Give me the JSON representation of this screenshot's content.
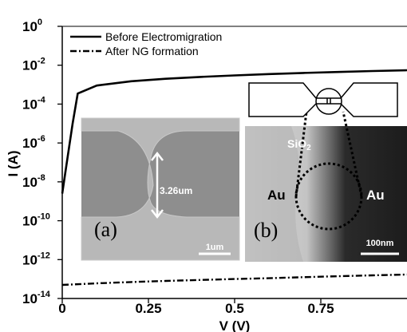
{
  "chart_data": {
    "type": "line",
    "xlabel": "V (V)",
    "ylabel": "I (A)",
    "xlim": [
      0,
      1.0
    ],
    "ylim_log10": [
      -14,
      0
    ],
    "y_scale": "log",
    "x_ticks": [
      "0",
      "0.25",
      "0.5",
      "0.75"
    ],
    "x_tick_values": [
      0,
      0.25,
      0.5,
      0.75
    ],
    "y_ticks": [
      {
        "base": "10",
        "exp": "0",
        "value": 0
      },
      {
        "base": "10",
        "exp": "-2",
        "value": -2
      },
      {
        "base": "10",
        "exp": "-4",
        "value": -4
      },
      {
        "base": "10",
        "exp": "-6",
        "value": -6
      },
      {
        "base": "10",
        "exp": "-8",
        "value": -8
      },
      {
        "base": "10",
        "exp": "-10",
        "value": -10
      },
      {
        "base": "10",
        "exp": "-12",
        "value": -12
      },
      {
        "base": "10",
        "exp": "-14",
        "value": -14
      }
    ],
    "series": [
      {
        "name": "Before Electromigration",
        "style": "solid",
        "x": [
          0,
          0.01,
          0.03,
          0.045,
          0.1,
          0.2,
          0.3,
          0.4,
          0.5,
          0.6,
          0.7,
          0.8,
          0.9,
          1.0
        ],
        "y": [
          2.5e-09,
          4e-08,
          1e-05,
          0.00035,
          0.0009,
          0.0015,
          0.002,
          0.0025,
          0.003,
          0.0035,
          0.004,
          0.0045,
          0.005,
          0.0055
        ]
      },
      {
        "name": "After NG formation",
        "style": "dash-dot",
        "x": [
          0,
          0.1,
          0.2,
          0.3,
          0.4,
          0.5,
          0.6,
          0.7,
          0.8,
          0.9,
          1.0
        ],
        "y": [
          5e-14,
          6e-14,
          7e-14,
          8e-14,
          9e-14,
          1e-13,
          1.1e-13,
          1.25e-13,
          1.4e-13,
          1.55e-13,
          1.7e-13
        ]
      }
    ],
    "legend_position": "top-left",
    "grid": false
  },
  "inset_a": {
    "label": "(a)",
    "measure": "3.26um",
    "scale_bar": "1um"
  },
  "inset_b": {
    "label": "(b)",
    "oxide": "SiO",
    "oxide_sub": "2",
    "left_metal": "Au",
    "right_metal": "Au",
    "scale_bar": "100nm"
  }
}
